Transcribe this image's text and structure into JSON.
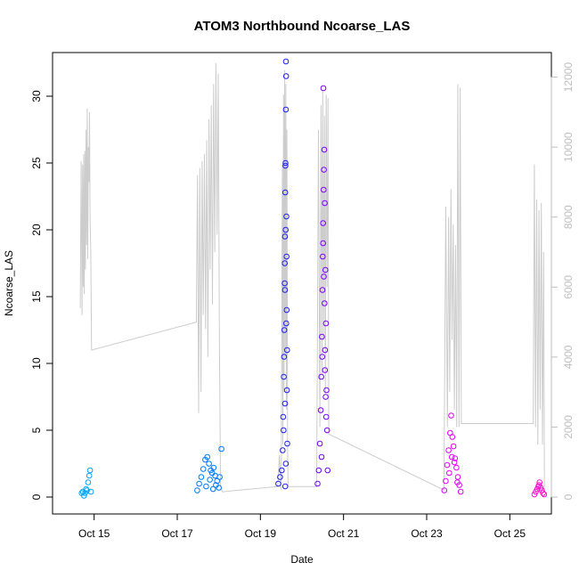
{
  "chart_data": {
    "type": "scatter",
    "title": "ATOM3 Northbound Ncoarse_LAS",
    "xlabel": "Date",
    "ylabel": "Ncoarse_LAS",
    "x_range": [
      "2016-10-14T00:00",
      "2016-10-26T00:00"
    ],
    "ylim": [
      0,
      33
    ],
    "y_ticks": [
      0,
      5,
      10,
      15,
      20,
      25,
      30
    ],
    "x_ticks": [
      {
        "date": "2016-10-15",
        "label": "Oct 15"
      },
      {
        "date": "2016-10-17",
        "label": "Oct 17"
      },
      {
        "date": "2016-10-19",
        "label": "Oct 19"
      },
      {
        "date": "2016-10-21",
        "label": "Oct 21"
      },
      {
        "date": "2016-10-23",
        "label": "Oct 23"
      },
      {
        "date": "2016-10-25",
        "label": "Oct 25"
      }
    ],
    "secondary_axis": {
      "ylim": [
        0,
        12600
      ],
      "ticks": [
        0,
        2000,
        4000,
        6000,
        8000,
        10000,
        12000
      ],
      "color": "#bebebe",
      "line_color": "#cccccc"
    },
    "grid": false,
    "series": [
      {
        "color": "#00a6ff",
        "x": [
          "2016-10-14T16:50",
          "2016-10-14T17:30",
          "2016-10-14T18:10",
          "2016-10-14T18:50",
          "2016-10-14T19:20",
          "2016-10-14T19:50",
          "2016-10-14T20:30",
          "2016-10-14T21:10",
          "2016-10-14T21:40",
          "2016-10-14T22:10"
        ],
        "y": [
          0.3,
          0.4,
          0.1,
          0.3,
          0.6,
          0.5,
          1.1,
          1.6,
          2.0,
          0.4
        ]
      },
      {
        "color": "#007aff",
        "x": [
          "2016-10-17T11:30",
          "2016-10-17T12:40",
          "2016-10-17T13:50",
          "2016-10-17T15:00",
          "2016-10-17T16:10",
          "2016-10-17T17:20",
          "2016-10-17T18:20",
          "2016-10-17T19:20",
          "2016-10-17T20:10",
          "2016-10-17T21:00",
          "2016-10-17T21:50",
          "2016-10-17T23:00",
          "2016-10-18T00:30",
          "2016-10-18T01:30",
          "2016-10-17T16:40",
          "2016-10-17T18:50",
          "2016-10-17T20:40",
          "2016-10-17T22:20",
          "2016-10-18T00:00"
        ],
        "y": [
          0.5,
          1.0,
          1.5,
          2.1,
          2.8,
          3.0,
          2.5,
          2.0,
          1.8,
          2.2,
          1.6,
          1.2,
          1.5,
          3.6,
          0.8,
          1.3,
          0.6,
          0.9,
          0.7
        ]
      },
      {
        "color": "#2020f0",
        "x": [
          "2016-10-19T10:20",
          "2016-10-19T11:20",
          "2016-10-19T12:20",
          "2016-10-19T12:50",
          "2016-10-19T13:10",
          "2016-10-19T13:30",
          "2016-10-19T13:50",
          "2016-10-19T14:00",
          "2016-10-19T14:10",
          "2016-10-19T14:20",
          "2016-10-19T14:30",
          "2016-10-19T14:40",
          "2016-10-19T14:50",
          "2016-10-19T15:00",
          "2016-10-19T15:10",
          "2016-10-19T15:20",
          "2016-10-19T15:30",
          "2016-10-19T13:20",
          "2016-10-19T13:40",
          "2016-10-19T14:05",
          "2016-10-19T14:25",
          "2016-10-19T14:45",
          "2016-10-19T15:05",
          "2016-10-19T15:25",
          "2016-10-19T14:15",
          "2016-10-19T14:35",
          "2016-10-19T14:55",
          "2016-10-19T14:10",
          "2016-10-19T14:40",
          "2016-10-19T14:20"
        ],
        "y": [
          1.0,
          1.5,
          2.0,
          3.5,
          6.0,
          9.0,
          12.5,
          16.0,
          19.5,
          22.8,
          25.0,
          29.0,
          31.5,
          21.0,
          14.0,
          8.0,
          4.0,
          5.0,
          10.5,
          17.5,
          24.8,
          32.6,
          18.0,
          11.0,
          7.0,
          20.0,
          13.0,
          15.5,
          2.5,
          0.8
        ]
      },
      {
        "color": "#7a00ff",
        "x": [
          "2016-10-20T09:00",
          "2016-10-20T09:40",
          "2016-10-20T10:20",
          "2016-10-20T10:50",
          "2016-10-20T11:10",
          "2016-10-20T11:30",
          "2016-10-20T11:50",
          "2016-10-20T12:10",
          "2016-10-20T12:30",
          "2016-10-20T12:50",
          "2016-10-20T13:10",
          "2016-10-20T13:30",
          "2016-10-20T13:50",
          "2016-10-20T14:10",
          "2016-10-20T14:30",
          "2016-10-20T14:50",
          "2016-10-20T11:20",
          "2016-10-20T11:40",
          "2016-10-20T12:00",
          "2016-10-20T12:20",
          "2016-10-20T12:40",
          "2016-10-20T13:00",
          "2016-10-20T13:20",
          "2016-10-20T13:40",
          "2016-10-20T14:00",
          "2016-10-20T12:10",
          "2016-10-20T12:35",
          "2016-10-20T13:15"
        ],
        "y": [
          1.0,
          2.0,
          4.0,
          6.5,
          9.0,
          12.0,
          15.5,
          19.0,
          23.0,
          26.0,
          22.0,
          17.0,
          13.0,
          8.0,
          5.0,
          2.0,
          3.0,
          10.5,
          18.0,
          30.6,
          24.5,
          14.5,
          11.0,
          7.5,
          6.0,
          20.5,
          16.5,
          9.5
        ]
      },
      {
        "color": "#e400ff",
        "x": [
          "2016-10-23T10:10",
          "2016-10-23T11:00",
          "2016-10-23T11:50",
          "2016-10-23T12:40",
          "2016-10-23T13:30",
          "2016-10-23T14:10",
          "2016-10-23T14:50",
          "2016-10-23T15:30",
          "2016-10-23T16:20",
          "2016-10-23T17:10",
          "2016-10-23T18:00",
          "2016-10-23T18:50",
          "2016-10-23T19:40",
          "2016-10-23T13:00",
          "2016-10-23T14:30",
          "2016-10-23T16:00",
          "2016-10-23T17:40"
        ],
        "y": [
          0.5,
          1.2,
          2.4,
          3.5,
          4.8,
          6.1,
          4.5,
          3.8,
          2.9,
          2.2,
          1.5,
          0.9,
          0.4,
          1.8,
          3.0,
          2.6,
          1.1
        ]
      },
      {
        "color": "#ff10d0",
        "x": [
          "2016-10-25T14:10",
          "2016-10-25T15:00",
          "2016-10-25T15:50",
          "2016-10-25T16:30",
          "2016-10-25T17:10",
          "2016-10-25T17:50",
          "2016-10-25T18:30",
          "2016-10-25T19:10",
          "2016-10-25T19:50",
          "2016-10-25T16:50"
        ],
        "y": [
          0.2,
          0.4,
          0.6,
          0.8,
          1.1,
          0.7,
          0.5,
          0.3,
          0.2,
          0.9
        ]
      }
    ],
    "secondary_line": {
      "x": [
        "2016-10-14T16:00",
        "2016-10-14T16:30",
        "2016-10-14T17:00",
        "2016-10-14T17:20",
        "2016-10-14T17:40",
        "2016-10-14T18:00",
        "2016-10-14T18:20",
        "2016-10-14T18:40",
        "2016-10-14T19:00",
        "2016-10-14T19:20",
        "2016-10-14T19:40",
        "2016-10-14T20:00",
        "2016-10-14T20:20",
        "2016-10-14T20:40",
        "2016-10-14T21:00",
        "2016-10-14T21:20",
        "2016-10-14T21:40",
        "2016-10-14T22:00",
        "2016-10-14T22:30",
        "2016-10-17T11:00",
        "2016-10-17T11:40",
        "2016-10-17T12:20",
        "2016-10-17T13:00",
        "2016-10-17T13:40",
        "2016-10-17T14:20",
        "2016-10-17T15:00",
        "2016-10-17T15:40",
        "2016-10-17T16:20",
        "2016-10-17T17:00",
        "2016-10-17T17:40",
        "2016-10-17T18:20",
        "2016-10-17T19:00",
        "2016-10-17T19:40",
        "2016-10-17T20:20",
        "2016-10-17T21:00",
        "2016-10-17T21:40",
        "2016-10-17T22:20",
        "2016-10-17T23:00",
        "2016-10-17T23:40",
        "2016-10-18T00:20",
        "2016-10-18T01:00",
        "2016-10-18T02:00",
        "2016-10-19T10:00",
        "2016-10-19T11:00",
        "2016-10-19T12:00",
        "2016-10-19T12:40",
        "2016-10-19T13:00",
        "2016-10-19T13:20",
        "2016-10-19T13:40",
        "2016-10-19T14:00",
        "2016-10-19T14:20",
        "2016-10-19T14:40",
        "2016-10-19T15:00",
        "2016-10-19T15:20",
        "2016-10-19T15:40",
        "2016-10-19T16:00",
        "2016-10-20T08:30",
        "2016-10-20T09:30",
        "2016-10-20T10:20",
        "2016-10-20T11:00",
        "2016-10-20T11:30",
        "2016-10-20T12:00",
        "2016-10-20T12:30",
        "2016-10-20T13:00",
        "2016-10-20T13:30",
        "2016-10-20T14:00",
        "2016-10-20T14:30",
        "2016-10-20T15:00",
        "2016-10-20T15:30",
        "2016-10-23T10:00",
        "2016-10-23T11:00",
        "2016-10-23T12:00",
        "2016-10-23T12:40",
        "2016-10-23T13:20",
        "2016-10-23T14:00",
        "2016-10-23T14:40",
        "2016-10-23T15:20",
        "2016-10-23T16:00",
        "2016-10-23T16:40",
        "2016-10-23T17:20",
        "2016-10-23T18:00",
        "2016-10-23T18:40",
        "2016-10-23T19:20",
        "2016-10-23T20:00",
        "2016-10-25T13:30",
        "2016-10-25T14:10",
        "2016-10-25T14:50",
        "2016-10-25T15:30",
        "2016-10-25T16:10",
        "2016-10-25T16:50",
        "2016-10-25T17:30",
        "2016-10-25T18:10",
        "2016-10-25T18:50",
        "2016-10-25T19:30",
        "2016-10-25T20:00"
      ],
      "y": [
        5400,
        9600,
        5200,
        9500,
        6000,
        9800,
        5800,
        9900,
        6500,
        10500,
        7200,
        11100,
        6800,
        10000,
        9000,
        11000,
        8000,
        7200,
        4200,
        5000,
        9200,
        2400,
        9400,
        3000,
        9600,
        5200,
        9800,
        4800,
        10200,
        4000,
        10800,
        6500,
        11200,
        5500,
        11800,
        7000,
        12400,
        7500,
        12100,
        4500,
        300,
        150,
        300,
        1200,
        200,
        9500,
        1500,
        11500,
        3000,
        12200,
        4000,
        11800,
        2500,
        10500,
        1500,
        300,
        300,
        10500,
        2000,
        11200,
        3500,
        11600,
        4500,
        10900,
        3000,
        11500,
        6000,
        11400,
        1800,
        200,
        8300,
        2000,
        8000,
        3000,
        8800,
        4500,
        7800,
        2500,
        7200,
        2000,
        11800,
        2000,
        11700,
        2100,
        2100,
        9500,
        2000,
        8500,
        1500,
        8200,
        2500,
        8400,
        1500,
        7000,
        200
      ]
    }
  }
}
